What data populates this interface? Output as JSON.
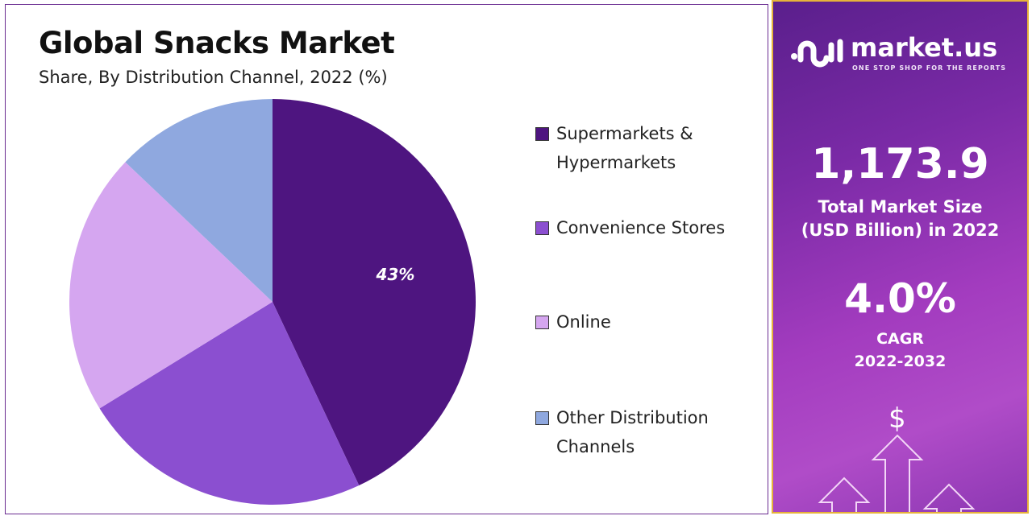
{
  "chart_data": {
    "type": "pie",
    "title": "Global Snacks Market",
    "subtitle": "Share, By Distribution Channel, 2022 (%)",
    "categories": [
      "Supermarkets & Hypermarkets",
      "Convenience Stores",
      "Online",
      "Other Distribution Channels"
    ],
    "legend_lines": [
      [
        "Supermarkets &",
        "Hypermarkets"
      ],
      [
        "Convenience Stores"
      ],
      [
        "Online"
      ],
      [
        "Other Distribution",
        "Channels"
      ]
    ],
    "values": [
      43,
      23.2,
      20.9,
      12.9
    ],
    "data_labels": [
      "43%",
      "",
      "",
      ""
    ],
    "colors": [
      "#4e1580",
      "#8b4fd0",
      "#d5a6f0",
      "#8fa8df"
    ],
    "legend_position": "right"
  },
  "side": {
    "logo": {
      "name": "market.us",
      "tagline": "ONE STOP SHOP FOR THE REPORTS"
    },
    "market_size": "1,173.9",
    "market_size_label_1": "Total Market Size",
    "market_size_label_2": "(USD Billion) in 2022",
    "cagr": "4.0%",
    "cagr_label": "CAGR",
    "cagr_period": "2022-2032",
    "icons": [
      "dollar-icon",
      "growth-arrows-icon"
    ]
  }
}
